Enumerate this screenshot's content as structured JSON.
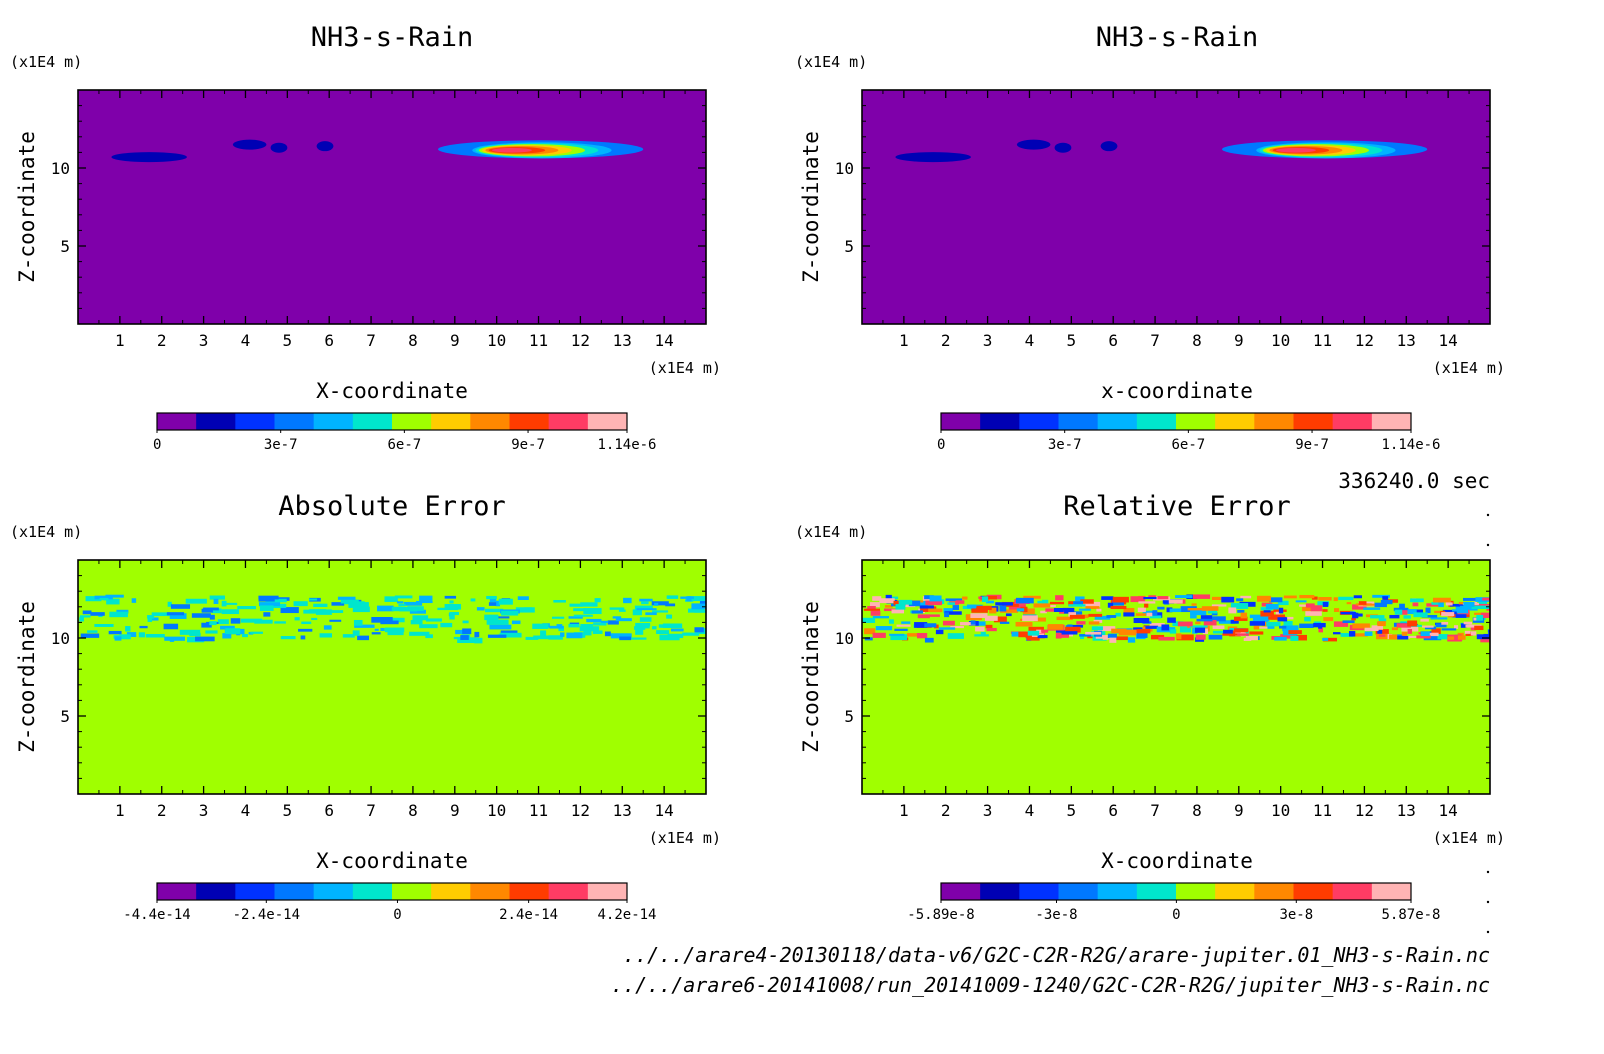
{
  "meta": {
    "time_label": "336240.0 sec",
    "source_files": [
      "../../arare4-20130118/data-v6/G2C-C2R-R2G/arare-jupiter.01_NH3-s-Rain.nc",
      "../../arare6-20141008/run_20141009-1240/G2C-C2R-R2G/jupiter_NH3-s-Rain.nc"
    ]
  },
  "chart_data": [
    {
      "type": "heatmap",
      "title": "NH3-s-Rain",
      "xlabel": "X-coordinate",
      "ylabel": "Z-coordinate",
      "x_unit": "(x1E4 m)",
      "y_unit": "(x1E4 m)",
      "x_ticks": [
        "1",
        "2",
        "3",
        "4",
        "5",
        "6",
        "7",
        "8",
        "9",
        "10",
        "11",
        "12",
        "13",
        "14"
      ],
      "y_ticks": [
        "5",
        "10"
      ],
      "xlim": [
        0,
        15
      ],
      "ylim": [
        0,
        15
      ],
      "background_color": "#7f00aa",
      "features": [
        {
          "x": [
            0.8,
            2.6
          ],
          "z": 10.7,
          "level": 1
        },
        {
          "x": [
            3.7,
            4.5
          ],
          "z": 11.5,
          "level": 1
        },
        {
          "x": [
            4.6,
            5.0
          ],
          "z": 11.3,
          "level": 1
        },
        {
          "x": [
            5.7,
            6.1
          ],
          "z": 11.4,
          "level": 1
        },
        {
          "x": [
            8.6,
            13.5
          ],
          "z": 11.2,
          "level": 3,
          "max_at": 11.2,
          "max_level": 10
        }
      ],
      "colorbar": {
        "min": 0,
        "max": 1.14e-06,
        "labels": [
          "0",
          "3e-7",
          "6e-7",
          "9e-7",
          "1.14e-6"
        ],
        "label_values": [
          0,
          3e-07,
          6e-07,
          9e-07,
          1.14e-06
        ],
        "colors": [
          "#7f00aa",
          "#0000b4",
          "#0032ff",
          "#0078ff",
          "#00b4ff",
          "#00e6cd",
          "#a0ff00",
          "#ffcc00",
          "#ff8800",
          "#ff3c00",
          "#ff3c64",
          "#ffb4b4"
        ]
      }
    },
    {
      "type": "heatmap",
      "title": "NH3-s-Rain",
      "xlabel": "x-coordinate",
      "ylabel": "Z-coordinate",
      "x_unit": "(x1E4 m)",
      "y_unit": "(x1E4 m)",
      "x_ticks": [
        "1",
        "2",
        "3",
        "4",
        "5",
        "6",
        "7",
        "8",
        "9",
        "10",
        "11",
        "12",
        "13",
        "14"
      ],
      "y_ticks": [
        "5",
        "10"
      ],
      "xlim": [
        0,
        15
      ],
      "ylim": [
        0,
        15
      ],
      "background_color": "#7f00aa",
      "features": [
        {
          "x": [
            0.8,
            2.6
          ],
          "z": 10.7,
          "level": 1
        },
        {
          "x": [
            3.7,
            4.5
          ],
          "z": 11.5,
          "level": 1
        },
        {
          "x": [
            4.6,
            5.0
          ],
          "z": 11.3,
          "level": 1
        },
        {
          "x": [
            5.7,
            6.1
          ],
          "z": 11.4,
          "level": 1
        },
        {
          "x": [
            8.6,
            13.5
          ],
          "z": 11.2,
          "level": 3,
          "max_at": 11.2,
          "max_level": 10
        }
      ],
      "colorbar": {
        "min": 0,
        "max": 1.14e-06,
        "labels": [
          "0",
          "3e-7",
          "6e-7",
          "9e-7",
          "1.14e-6"
        ],
        "label_values": [
          0,
          3e-07,
          6e-07,
          9e-07,
          1.14e-06
        ],
        "colors": [
          "#7f00aa",
          "#0000b4",
          "#0032ff",
          "#0078ff",
          "#00b4ff",
          "#00e6cd",
          "#a0ff00",
          "#ffcc00",
          "#ff8800",
          "#ff3c00",
          "#ff3c64",
          "#ffb4b4"
        ]
      }
    },
    {
      "type": "heatmap",
      "title": "Absolute Error",
      "xlabel": "X-coordinate",
      "ylabel": "Z-coordinate",
      "x_unit": "(x1E4 m)",
      "y_unit": "(x1E4 m)",
      "x_ticks": [
        "1",
        "2",
        "3",
        "4",
        "5",
        "6",
        "7",
        "8",
        "9",
        "10",
        "11",
        "12",
        "13",
        "14"
      ],
      "y_ticks": [
        "5",
        "10"
      ],
      "xlim": [
        0,
        15
      ],
      "ylim": [
        0,
        15
      ],
      "background_color": "#a0ff00",
      "noise_band": {
        "z": [
          10,
          12.8
        ],
        "x": [
          0,
          15
        ],
        "palette_levels": [
          5,
          5,
          5,
          4,
          3
        ]
      },
      "colorbar": {
        "min": -4.4e-14,
        "max": 4.2e-14,
        "labels": [
          "-4.4e-14",
          "-2.4e-14",
          "0",
          "2.4e-14",
          "4.2e-14"
        ],
        "label_values": [
          -4.4e-14,
          -2.4e-14,
          0,
          2.4e-14,
          4.2e-14
        ],
        "colors": [
          "#7f00aa",
          "#0000b4",
          "#0032ff",
          "#0078ff",
          "#00b4ff",
          "#00e6cd",
          "#a0ff00",
          "#ffcc00",
          "#ff8800",
          "#ff3c00",
          "#ff3c64",
          "#ffb4b4"
        ]
      }
    },
    {
      "type": "heatmap",
      "title": "Relative Error",
      "xlabel": "X-coordinate",
      "ylabel": "Z-coordinate",
      "x_unit": "(x1E4 m)",
      "y_unit": "(x1E4 m)",
      "x_ticks": [
        "1",
        "2",
        "3",
        "4",
        "5",
        "6",
        "7",
        "8",
        "9",
        "10",
        "11",
        "12",
        "13",
        "14"
      ],
      "y_ticks": [
        "5",
        "10"
      ],
      "xlim": [
        0,
        15
      ],
      "ylim": [
        0,
        15
      ],
      "background_color": "#a0ff00",
      "noise_band": {
        "z": [
          10,
          12.8
        ],
        "x": [
          0,
          15
        ],
        "palette_levels": [
          2,
          3,
          4,
          5,
          8,
          9,
          10,
          11
        ]
      },
      "colorbar": {
        "min": -5.89e-08,
        "max": 5.87e-08,
        "labels": [
          "-5.89e-8",
          "-3e-8",
          "0",
          "3e-8",
          "5.87e-8"
        ],
        "label_values": [
          -5.89e-08,
          -3e-08,
          0,
          3e-08,
          5.87e-08
        ],
        "colors": [
          "#7f00aa",
          "#0000b4",
          "#0032ff",
          "#0078ff",
          "#00b4ff",
          "#00e6cd",
          "#a0ff00",
          "#ffcc00",
          "#ff8800",
          "#ff3c00",
          "#ff3c64",
          "#ffb4b4"
        ]
      }
    }
  ]
}
